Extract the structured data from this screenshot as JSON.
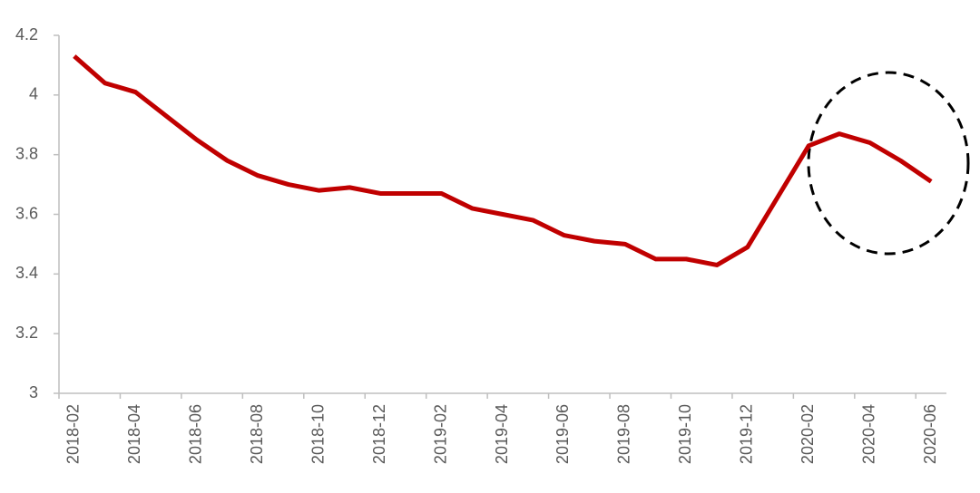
{
  "chart_data": {
    "type": "line",
    "categories": [
      "2018-02",
      null,
      "2018-04",
      null,
      "2018-06",
      null,
      "2018-08",
      null,
      "2018-10",
      null,
      "2018-12",
      null,
      "2019-02",
      null,
      "2019-04",
      null,
      "2019-06",
      null,
      "2019-08",
      null,
      "2019-10",
      null,
      "2019-12",
      null,
      "2020-02",
      null,
      "2020-04",
      null,
      "2020-06"
    ],
    "series": [
      {
        "color": "#c00000",
        "values": [
          4.13,
          4.04,
          4.01,
          3.93,
          3.85,
          3.78,
          3.73,
          3.7,
          3.68,
          3.69,
          3.67,
          3.67,
          3.67,
          3.62,
          3.6,
          3.58,
          3.53,
          3.51,
          3.5,
          3.45,
          3.45,
          3.43,
          3.49,
          3.66,
          3.83,
          3.87,
          3.84,
          3.78,
          3.71
        ]
      }
    ],
    "ylim": [
      3,
      4.2
    ],
    "yticks": [
      3,
      {
        "value": 3.2,
        "label": "3.2"
      },
      {
        "value": 3.4,
        "label": "3.4"
      },
      {
        "value": 3.6,
        "label": "3.6"
      },
      {
        "value": 3.8,
        "label": "3.8"
      },
      4,
      {
        "value": 4.2,
        "label": "4.2"
      }
    ]
  }
}
